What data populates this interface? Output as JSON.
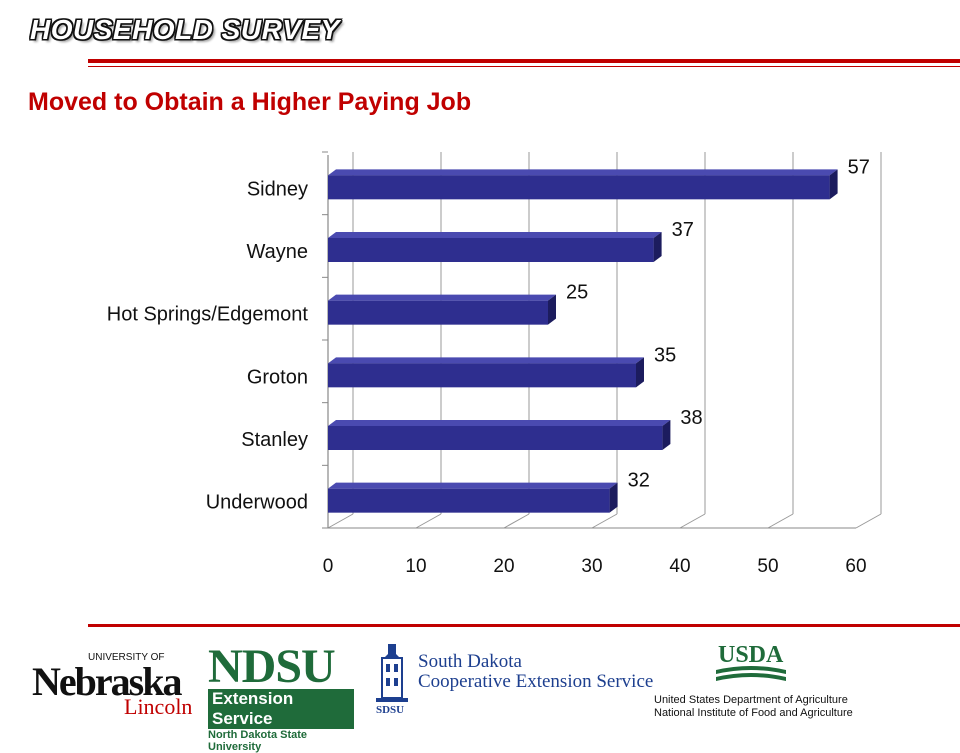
{
  "header": {
    "title": "HOUSEHOLD SURVEY"
  },
  "chart_data": {
    "type": "bar",
    "orientation": "horizontal",
    "title": "Moved to Obtain a Higher Paying Job",
    "categories": [
      "Sidney",
      "Wayne",
      "Hot Springs/Edgemont",
      "Groton",
      "Stanley",
      "Underwood"
    ],
    "values": [
      57,
      37,
      25,
      35,
      38,
      32
    ],
    "data_labels": [
      "57",
      "37",
      "25",
      "35",
      "38",
      "32"
    ],
    "xlim": [
      0,
      60
    ],
    "xticks": [
      0,
      10,
      20,
      30,
      40,
      50,
      60
    ],
    "xtick_labels": [
      "0",
      "10",
      "20",
      "30",
      "40",
      "50",
      "60"
    ],
    "grid": true,
    "legend": "none",
    "bar_color": "#2e2e8f",
    "bar_side_color": "#1c1c5e",
    "bar_top_color": "#4a4ab0"
  },
  "logos": {
    "nebraska": {
      "university": "UNIVERSITY OF",
      "name": "Nebraska",
      "campus": "Lincoln"
    },
    "ndsu": {
      "name": "NDSU",
      "unit": "Extension Service",
      "university": "North Dakota State University"
    },
    "sdsu": {
      "line1": "South Dakota",
      "line2": "Cooperative Extension Service",
      "mark": "SDSU"
    },
    "usda": {
      "name": "USDA",
      "line1": "United States Department of Agriculture",
      "line2": "National Institute of Food and Agriculture"
    }
  },
  "colors": {
    "accent": "#c00000",
    "ndsu_green": "#1f6b3a",
    "sd_blue": "#1d3f8f"
  }
}
